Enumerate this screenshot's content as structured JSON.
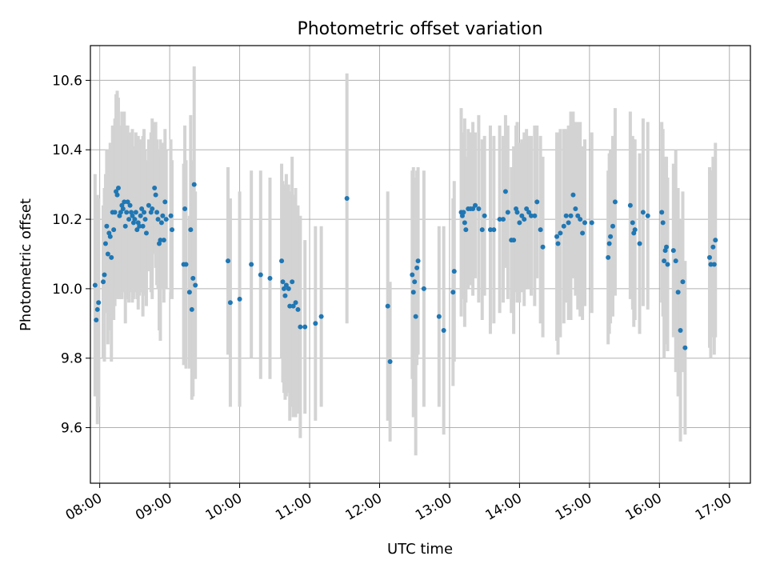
{
  "chart_data": {
    "type": "scatter",
    "title": "Photometric offset variation",
    "xlabel": "UTC time",
    "ylabel": "Photometric offset",
    "xlim": [
      "07:52",
      "17:18"
    ],
    "ylim": [
      9.44,
      10.7
    ],
    "xticks": [
      "08:00",
      "09:00",
      "10:00",
      "11:00",
      "12:00",
      "13:00",
      "14:00",
      "15:00",
      "16:00",
      "17:00"
    ],
    "yticks": [
      9.6,
      9.8,
      10.0,
      10.2,
      10.4,
      10.6
    ],
    "grid": true,
    "legend": "none",
    "series": [
      {
        "marker_color": "#1f77b4",
        "errorbar_color": "#d3d3d3",
        "points": [
          {
            "x": "07:56",
            "y": 10.01,
            "err": 0.32
          },
          {
            "x": "07:57",
            "y": 9.91,
            "err": 0.21
          },
          {
            "x": "07:58",
            "y": 9.94,
            "err": 0.33
          },
          {
            "x": "07:59",
            "y": 9.96,
            "err": 0.3
          },
          {
            "x": "08:03",
            "y": 10.02,
            "err": 0.22
          },
          {
            "x": "08:04",
            "y": 10.04,
            "err": 0.25
          },
          {
            "x": "08:05",
            "y": 10.13,
            "err": 0.2
          },
          {
            "x": "08:06",
            "y": 10.18,
            "err": 0.22
          },
          {
            "x": "08:07",
            "y": 10.1,
            "err": 0.26
          },
          {
            "x": "08:08",
            "y": 10.16,
            "err": 0.24
          },
          {
            "x": "08:09",
            "y": 10.15,
            "err": 0.27
          },
          {
            "x": "08:10",
            "y": 10.09,
            "err": 0.3
          },
          {
            "x": "08:11",
            "y": 10.22,
            "err": 0.25
          },
          {
            "x": "08:12",
            "y": 10.17,
            "err": 0.26
          },
          {
            "x": "08:13",
            "y": 10.22,
            "err": 0.27
          },
          {
            "x": "08:14",
            "y": 10.28,
            "err": 0.28
          },
          {
            "x": "08:15",
            "y": 10.27,
            "err": 0.3
          },
          {
            "x": "08:16",
            "y": 10.29,
            "err": 0.26
          },
          {
            "x": "08:17",
            "y": 10.21,
            "err": 0.24
          },
          {
            "x": "08:18",
            "y": 10.22,
            "err": 0.25
          },
          {
            "x": "08:19",
            "y": 10.24,
            "err": 0.27
          },
          {
            "x": "08:20",
            "y": 10.23,
            "err": 0.24
          },
          {
            "x": "08:21",
            "y": 10.25,
            "err": 0.26
          },
          {
            "x": "08:22",
            "y": 10.18,
            "err": 0.28
          },
          {
            "x": "08:23",
            "y": 10.22,
            "err": 0.25
          },
          {
            "x": "08:24",
            "y": 10.25,
            "err": 0.22
          },
          {
            "x": "08:25",
            "y": 10.2,
            "err": 0.24
          },
          {
            "x": "08:26",
            "y": 10.24,
            "err": 0.21
          },
          {
            "x": "08:27",
            "y": 10.22,
            "err": 0.23
          },
          {
            "x": "08:28",
            "y": 10.21,
            "err": 0.25
          },
          {
            "x": "08:29",
            "y": 10.19,
            "err": 0.22
          },
          {
            "x": "08:30",
            "y": 10.2,
            "err": 0.2
          },
          {
            "x": "08:31",
            "y": 10.22,
            "err": 0.23
          },
          {
            "x": "08:32",
            "y": 10.17,
            "err": 0.2
          },
          {
            "x": "08:33",
            "y": 10.19,
            "err": 0.25
          },
          {
            "x": "08:34",
            "y": 10.18,
            "err": 0.2
          },
          {
            "x": "08:35",
            "y": 10.21,
            "err": 0.22
          },
          {
            "x": "08:36",
            "y": 10.23,
            "err": 0.19
          },
          {
            "x": "08:37",
            "y": 10.18,
            "err": 0.26
          },
          {
            "x": "08:38",
            "y": 10.22,
            "err": 0.24
          },
          {
            "x": "08:39",
            "y": 10.2,
            "err": 0.2
          },
          {
            "x": "08:40",
            "y": 10.16,
            "err": 0.21
          },
          {
            "x": "08:42",
            "y": 10.24,
            "err": 0.19
          },
          {
            "x": "08:44",
            "y": 10.22,
            "err": 0.23
          },
          {
            "x": "08:45",
            "y": 10.23,
            "err": 0.26
          },
          {
            "x": "08:47",
            "y": 10.29,
            "err": 0.19
          },
          {
            "x": "08:48",
            "y": 10.27,
            "err": 0.21
          },
          {
            "x": "08:49",
            "y": 10.22,
            "err": 0.21
          },
          {
            "x": "08:50",
            "y": 10.2,
            "err": 0.2
          },
          {
            "x": "08:51",
            "y": 10.13,
            "err": 0.25
          },
          {
            "x": "08:52",
            "y": 10.14,
            "err": 0.29
          },
          {
            "x": "08:53",
            "y": 10.19,
            "err": 0.19
          },
          {
            "x": "08:54",
            "y": 10.21,
            "err": 0.21
          },
          {
            "x": "08:55",
            "y": 10.14,
            "err": 0.18
          },
          {
            "x": "08:56",
            "y": 10.25,
            "err": 0.21
          },
          {
            "x": "08:57",
            "y": 10.2,
            "err": 0.2
          },
          {
            "x": "09:01",
            "y": 10.21,
            "err": 0.22
          },
          {
            "x": "09:02",
            "y": 10.17,
            "err": 0.2
          },
          {
            "x": "09:13",
            "y": 10.23,
            "err": 0.24
          },
          {
            "x": "09:12",
            "y": 10.07,
            "err": 0.29
          },
          {
            "x": "09:14",
            "y": 10.07,
            "err": 0.3
          },
          {
            "x": "09:17",
            "y": 9.99,
            "err": 0.22
          },
          {
            "x": "09:18",
            "y": 10.17,
            "err": 0.33
          },
          {
            "x": "09:19",
            "y": 9.94,
            "err": 0.26
          },
          {
            "x": "09:20",
            "y": 10.03,
            "err": 0.34
          },
          {
            "x": "09:21",
            "y": 10.3,
            "err": 0.34
          },
          {
            "x": "09:22",
            "y": 10.01,
            "err": 0.27
          },
          {
            "x": "09:50",
            "y": 10.08,
            "err": 0.27
          },
          {
            "x": "09:52",
            "y": 9.96,
            "err": 0.3
          },
          {
            "x": "10:00",
            "y": 9.97,
            "err": 0.31
          },
          {
            "x": "10:10",
            "y": 10.07,
            "err": 0.27
          },
          {
            "x": "10:18",
            "y": 10.04,
            "err": 0.3
          },
          {
            "x": "10:26",
            "y": 10.03,
            "err": 0.29
          },
          {
            "x": "10:36",
            "y": 10.08,
            "err": 0.28
          },
          {
            "x": "10:37",
            "y": 10.02,
            "err": 0.29
          },
          {
            "x": "10:38",
            "y": 10.0,
            "err": 0.3
          },
          {
            "x": "10:39",
            "y": 9.98,
            "err": 0.3
          },
          {
            "x": "10:40",
            "y": 10.01,
            "err": 0.32
          },
          {
            "x": "10:42",
            "y": 10.0,
            "err": 0.3
          },
          {
            "x": "10:43",
            "y": 9.95,
            "err": 0.33
          },
          {
            "x": "10:45",
            "y": 10.02,
            "err": 0.36
          },
          {
            "x": "10:46",
            "y": 9.95,
            "err": 0.32
          },
          {
            "x": "10:48",
            "y": 9.96,
            "err": 0.33
          },
          {
            "x": "10:50",
            "y": 9.94,
            "err": 0.3
          },
          {
            "x": "10:52",
            "y": 9.89,
            "err": 0.32
          },
          {
            "x": "10:56",
            "y": 9.89,
            "err": 0.25
          },
          {
            "x": "11:05",
            "y": 9.9,
            "err": 0.28
          },
          {
            "x": "11:10",
            "y": 9.92,
            "err": 0.26
          },
          {
            "x": "11:32",
            "y": 10.26,
            "err": 0.36
          },
          {
            "x": "12:07",
            "y": 9.95,
            "err": 0.33
          },
          {
            "x": "12:09",
            "y": 9.79,
            "err": 0.23
          },
          {
            "x": "12:28",
            "y": 10.04,
            "err": 0.3
          },
          {
            "x": "12:29",
            "y": 9.99,
            "err": 0.36
          },
          {
            "x": "12:30",
            "y": 10.02,
            "err": 0.3
          },
          {
            "x": "12:31",
            "y": 9.92,
            "err": 0.4
          },
          {
            "x": "12:32",
            "y": 10.06,
            "err": 0.28
          },
          {
            "x": "12:33",
            "y": 10.08,
            "err": 0.27
          },
          {
            "x": "12:38",
            "y": 10.0,
            "err": 0.34
          },
          {
            "x": "12:51",
            "y": 9.92,
            "err": 0.26
          },
          {
            "x": "12:55",
            "y": 9.88,
            "err": 0.3
          },
          {
            "x": "13:03",
            "y": 9.99,
            "err": 0.27
          },
          {
            "x": "13:04",
            "y": 10.05,
            "err": 0.26
          },
          {
            "x": "13:10",
            "y": 10.22,
            "err": 0.3
          },
          {
            "x": "13:11",
            "y": 10.21,
            "err": 0.24
          },
          {
            "x": "13:12",
            "y": 10.22,
            "err": 0.22
          },
          {
            "x": "13:13",
            "y": 10.19,
            "err": 0.3
          },
          {
            "x": "13:14",
            "y": 10.17,
            "err": 0.21
          },
          {
            "x": "13:16",
            "y": 10.23,
            "err": 0.23
          },
          {
            "x": "13:18",
            "y": 10.23,
            "err": 0.22
          },
          {
            "x": "13:20",
            "y": 10.23,
            "err": 0.25
          },
          {
            "x": "13:22",
            "y": 10.24,
            "err": 0.21
          },
          {
            "x": "13:25",
            "y": 10.23,
            "err": 0.27
          },
          {
            "x": "13:28",
            "y": 10.17,
            "err": 0.26
          },
          {
            "x": "13:30",
            "y": 10.21,
            "err": 0.23
          },
          {
            "x": "13:35",
            "y": 10.17,
            "err": 0.3
          },
          {
            "x": "13:38",
            "y": 10.17,
            "err": 0.27
          },
          {
            "x": "13:43",
            "y": 10.2,
            "err": 0.27
          },
          {
            "x": "13:46",
            "y": 10.2,
            "err": 0.24
          },
          {
            "x": "13:48",
            "y": 10.28,
            "err": 0.22
          },
          {
            "x": "13:50",
            "y": 10.22,
            "err": 0.25
          },
          {
            "x": "13:53",
            "y": 10.14,
            "err": 0.21
          },
          {
            "x": "13:55",
            "y": 10.14,
            "err": 0.27
          },
          {
            "x": "13:57",
            "y": 10.23,
            "err": 0.24
          },
          {
            "x": "13:58",
            "y": 10.22,
            "err": 0.26
          },
          {
            "x": "14:00",
            "y": 10.19,
            "err": 0.23
          },
          {
            "x": "14:02",
            "y": 10.21,
            "err": 0.22
          },
          {
            "x": "14:04",
            "y": 10.2,
            "err": 0.25
          },
          {
            "x": "14:06",
            "y": 10.23,
            "err": 0.23
          },
          {
            "x": "14:08",
            "y": 10.22,
            "err": 0.22
          },
          {
            "x": "14:10",
            "y": 10.21,
            "err": 0.23
          },
          {
            "x": "14:13",
            "y": 10.21,
            "err": 0.26
          },
          {
            "x": "14:15",
            "y": 10.25,
            "err": 0.22
          },
          {
            "x": "14:18",
            "y": 10.17,
            "err": 0.27
          },
          {
            "x": "14:20",
            "y": 10.12,
            "err": 0.26
          },
          {
            "x": "14:32",
            "y": 10.15,
            "err": 0.3
          },
          {
            "x": "14:33",
            "y": 10.13,
            "err": 0.32
          },
          {
            "x": "14:35",
            "y": 10.16,
            "err": 0.3
          },
          {
            "x": "14:38",
            "y": 10.18,
            "err": 0.28
          },
          {
            "x": "14:40",
            "y": 10.21,
            "err": 0.25
          },
          {
            "x": "14:42",
            "y": 10.19,
            "err": 0.28
          },
          {
            "x": "14:44",
            "y": 10.21,
            "err": 0.3
          },
          {
            "x": "14:46",
            "y": 10.27,
            "err": 0.24
          },
          {
            "x": "14:48",
            "y": 10.23,
            "err": 0.25
          },
          {
            "x": "14:50",
            "y": 10.21,
            "err": 0.27
          },
          {
            "x": "14:52",
            "y": 10.2,
            "err": 0.28
          },
          {
            "x": "14:54",
            "y": 10.16,
            "err": 0.25
          },
          {
            "x": "14:56",
            "y": 10.19,
            "err": 0.24
          },
          {
            "x": "15:02",
            "y": 10.19,
            "err": 0.26
          },
          {
            "x": "15:16",
            "y": 10.09,
            "err": 0.25
          },
          {
            "x": "15:17",
            "y": 10.13,
            "err": 0.26
          },
          {
            "x": "15:18",
            "y": 10.15,
            "err": 0.25
          },
          {
            "x": "15:20",
            "y": 10.18,
            "err": 0.26
          },
          {
            "x": "15:22",
            "y": 10.25,
            "err": 0.27
          },
          {
            "x": "15:35",
            "y": 10.24,
            "err": 0.27
          },
          {
            "x": "15:37",
            "y": 10.19,
            "err": 0.25
          },
          {
            "x": "15:38",
            "y": 10.16,
            "err": 0.27
          },
          {
            "x": "15:39",
            "y": 10.17,
            "err": 0.26
          },
          {
            "x": "15:43",
            "y": 10.13,
            "err": 0.26
          },
          {
            "x": "15:46",
            "y": 10.22,
            "err": 0.27
          },
          {
            "x": "15:50",
            "y": 10.21,
            "err": 0.27
          },
          {
            "x": "16:02",
            "y": 10.22,
            "err": 0.26
          },
          {
            "x": "16:03",
            "y": 10.19,
            "err": 0.27
          },
          {
            "x": "16:04",
            "y": 10.08,
            "err": 0.28
          },
          {
            "x": "16:05",
            "y": 10.11,
            "err": 0.27
          },
          {
            "x": "16:06",
            "y": 10.12,
            "err": 0.26
          },
          {
            "x": "16:07",
            "y": 10.07,
            "err": 0.25
          },
          {
            "x": "16:12",
            "y": 10.11,
            "err": 0.25
          },
          {
            "x": "16:14",
            "y": 10.08,
            "err": 0.32
          },
          {
            "x": "16:16",
            "y": 9.99,
            "err": 0.3
          },
          {
            "x": "16:18",
            "y": 9.88,
            "err": 0.32
          },
          {
            "x": "16:20",
            "y": 10.02,
            "err": 0.26
          },
          {
            "x": "16:22",
            "y": 9.83,
            "err": 0.25
          },
          {
            "x": "16:43",
            "y": 10.09,
            "err": 0.26
          },
          {
            "x": "16:44",
            "y": 10.07,
            "err": 0.27
          },
          {
            "x": "16:46",
            "y": 10.12,
            "err": 0.26
          },
          {
            "x": "16:47",
            "y": 10.07,
            "err": 0.26
          },
          {
            "x": "16:48",
            "y": 10.14,
            "err": 0.28
          }
        ]
      }
    ]
  }
}
